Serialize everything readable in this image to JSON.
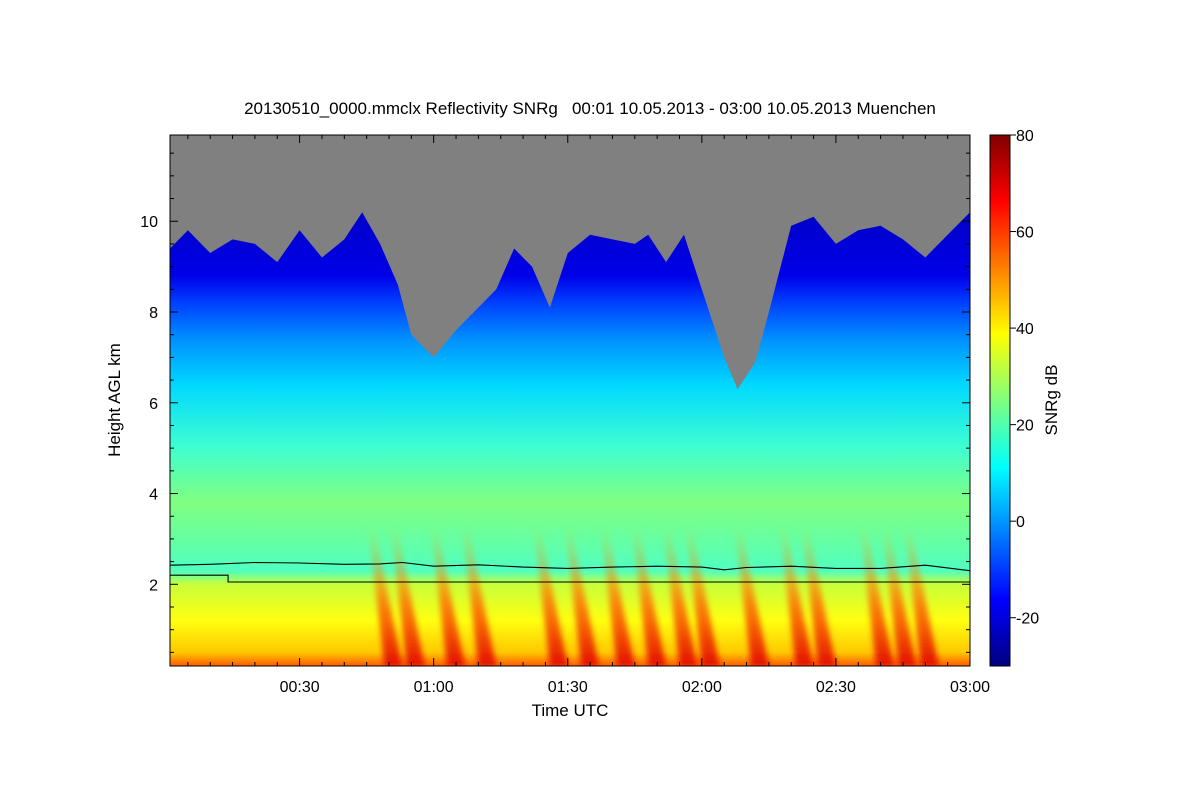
{
  "chart_data": {
    "type": "heatmap",
    "title": "20130510_0000.mmclx Reflectivity SNRg   00:01 10.05.2013 - 03:00 10.05.2013 Muenchen",
    "xlabel": "Time UTC",
    "ylabel": "Height AGL km",
    "colorbar_label": "SNRg dB",
    "x_range_minutes": [
      1,
      180
    ],
    "x_ticks": [
      {
        "minutes": 30,
        "label": "00:30"
      },
      {
        "minutes": 60,
        "label": "01:00"
      },
      {
        "minutes": 90,
        "label": "01:30"
      },
      {
        "minutes": 120,
        "label": "02:00"
      },
      {
        "minutes": 150,
        "label": "02:30"
      },
      {
        "minutes": 180,
        "label": "03:00"
      }
    ],
    "y_range_km": [
      0.2,
      11.9
    ],
    "y_ticks": [
      {
        "value": 2,
        "label": "2"
      },
      {
        "value": 4,
        "label": "4"
      },
      {
        "value": 6,
        "label": "6"
      },
      {
        "value": 8,
        "label": "8"
      },
      {
        "value": 10,
        "label": "10"
      }
    ],
    "colorbar_range_db": [
      -30,
      80
    ],
    "colorbar_ticks": [
      {
        "value": -20,
        "label": "-20"
      },
      {
        "value": 0,
        "label": "0"
      },
      {
        "value": 20,
        "label": "20"
      },
      {
        "value": 40,
        "label": "40"
      },
      {
        "value": 60,
        "label": "60"
      },
      {
        "value": 80,
        "label": "80"
      }
    ],
    "colormap": [
      "#00007f",
      "#0000ff",
      "#007fff",
      "#00ffff",
      "#7fff7f",
      "#ffff00",
      "#ff7f00",
      "#ff0000",
      "#7f0000"
    ],
    "no_signal_color": "#808080",
    "echo_top_km": [
      [
        1,
        9.4
      ],
      [
        5,
        9.8
      ],
      [
        10,
        9.3
      ],
      [
        15,
        9.6
      ],
      [
        20,
        9.5
      ],
      [
        25,
        9.1
      ],
      [
        30,
        9.8
      ],
      [
        35,
        9.2
      ],
      [
        40,
        9.6
      ],
      [
        44,
        10.2
      ],
      [
        48,
        9.5
      ],
      [
        52,
        8.6
      ],
      [
        55,
        7.5
      ],
      [
        60,
        7.0
      ],
      [
        65,
        7.6
      ],
      [
        70,
        8.1
      ],
      [
        74,
        8.5
      ],
      [
        78,
        9.4
      ],
      [
        82,
        9.0
      ],
      [
        86,
        8.1
      ],
      [
        90,
        9.3
      ],
      [
        95,
        9.7
      ],
      [
        100,
        9.6
      ],
      [
        105,
        9.5
      ],
      [
        108,
        9.7
      ],
      [
        112,
        9.1
      ],
      [
        116,
        9.7
      ],
      [
        120,
        8.5
      ],
      [
        125,
        7.0
      ],
      [
        128,
        6.3
      ],
      [
        132,
        6.9
      ],
      [
        135,
        8.0
      ],
      [
        140,
        9.9
      ],
      [
        145,
        10.1
      ],
      [
        150,
        9.5
      ],
      [
        155,
        9.8
      ],
      [
        160,
        9.9
      ],
      [
        165,
        9.6
      ],
      [
        170,
        9.2
      ],
      [
        175,
        9.7
      ],
      [
        180,
        10.2
      ]
    ],
    "convective_streaks_minutes": [
      51,
      56,
      65,
      72,
      88,
      95,
      103,
      110,
      117,
      122,
      133,
      143,
      148,
      161,
      166,
      171
    ],
    "lines": [
      {
        "name": "",
        "points_km": [
          [
            1,
            2.42
          ],
          [
            10,
            2.44
          ],
          [
            20,
            2.48
          ],
          [
            30,
            2.47
          ],
          [
            40,
            2.44
          ],
          [
            48,
            2.45
          ],
          [
            53,
            2.48
          ],
          [
            60,
            2.4
          ],
          [
            70,
            2.43
          ],
          [
            80,
            2.38
          ],
          [
            90,
            2.35
          ],
          [
            100,
            2.38
          ],
          [
            110,
            2.4
          ],
          [
            120,
            2.38
          ],
          [
            125,
            2.32
          ],
          [
            130,
            2.37
          ],
          [
            140,
            2.4
          ],
          [
            150,
            2.35
          ],
          [
            160,
            2.35
          ],
          [
            170,
            2.42
          ],
          [
            180,
            2.3
          ]
        ]
      },
      {
        "name": "",
        "points_km": [
          [
            1,
            2.2
          ],
          [
            14,
            2.2
          ],
          [
            14,
            2.05
          ],
          [
            180,
            2.05
          ]
        ]
      }
    ]
  }
}
